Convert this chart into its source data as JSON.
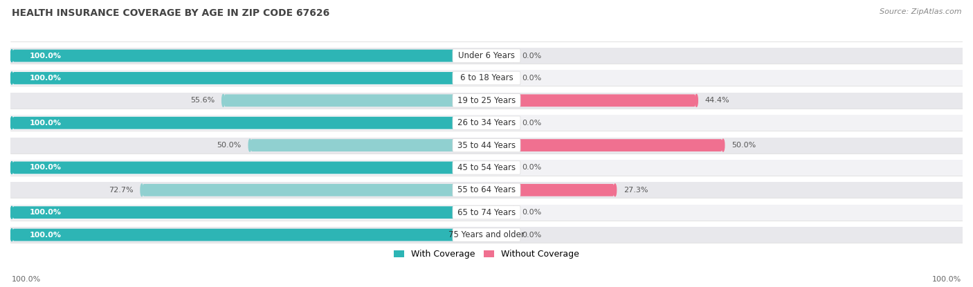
{
  "title": "HEALTH INSURANCE COVERAGE BY AGE IN ZIP CODE 67626",
  "source": "Source: ZipAtlas.com",
  "categories": [
    "Under 6 Years",
    "6 to 18 Years",
    "19 to 25 Years",
    "26 to 34 Years",
    "35 to 44 Years",
    "45 to 54 Years",
    "55 to 64 Years",
    "65 to 74 Years",
    "75 Years and older"
  ],
  "with_coverage": [
    100.0,
    100.0,
    55.6,
    100.0,
    50.0,
    100.0,
    72.7,
    100.0,
    100.0
  ],
  "without_coverage": [
    0.0,
    0.0,
    44.4,
    0.0,
    50.0,
    0.0,
    27.3,
    0.0,
    0.0
  ],
  "color_with_full": "#2db5b5",
  "color_with_partial": "#90d0d0",
  "color_without_full": "#f07090",
  "color_without_partial": "#f5b0c5",
  "bg_row_dark": "#e8e8ec",
  "bg_row_light": "#f2f2f5",
  "title_fontsize": 10,
  "source_fontsize": 8,
  "label_fontsize": 8.5,
  "bar_label_fontsize": 8,
  "legend_fontsize": 9,
  "footer_fontsize": 8
}
